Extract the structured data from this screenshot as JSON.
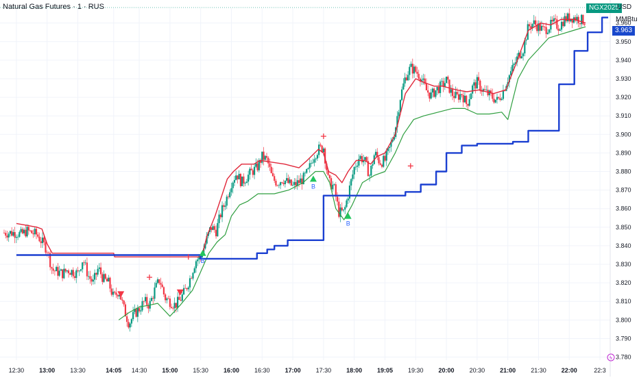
{
  "header": {
    "title": "Natural Gas Futures · 1 · RUS",
    "currency": "USD",
    "unit": "MMBtu",
    "ticker_badge": "NGX2025",
    "last_price_badge": "3.963"
  },
  "colors": {
    "bull": "#089981",
    "bear": "#f23645",
    "red_line": "#e0273a",
    "green_line": "#2e9e3f",
    "blue_line": "#1a3fd1",
    "signal_up": "#22c55e",
    "signal_down": "#f23645",
    "signal_text": "#2962ff"
  },
  "chart_data": {
    "type": "candlestick",
    "ylim": [
      3.785,
      3.968
    ],
    "y_ticks": [
      3.78,
      3.79,
      3.8,
      3.81,
      3.82,
      3.83,
      3.84,
      3.85,
      3.86,
      3.87,
      3.88,
      3.89,
      3.9,
      3.91,
      3.92,
      3.93,
      3.94,
      3.95,
      3.96
    ],
    "y_tick_labels": [
      "3.780",
      "3.790",
      "3.800",
      "3.810",
      "3.820",
      "3.830",
      "3.840",
      "3.850",
      "3.860",
      "3.870",
      "3.880",
      "3.890",
      "3.900",
      "3.910",
      "3.920",
      "3.930",
      "3.940",
      "3.950",
      "3.960"
    ],
    "x_ticks": [
      {
        "t": 0,
        "label": "12:30",
        "bold": false
      },
      {
        "t": 30,
        "label": "13:00",
        "bold": true
      },
      {
        "t": 60,
        "label": "13:30",
        "bold": false
      },
      {
        "t": 95,
        "label": "14:05",
        "bold": true
      },
      {
        "t": 120,
        "label": "14:30",
        "bold": false
      },
      {
        "t": 150,
        "label": "15:00",
        "bold": true
      },
      {
        "t": 180,
        "label": "15:30",
        "bold": false
      },
      {
        "t": 210,
        "label": "16:00",
        "bold": true
      },
      {
        "t": 240,
        "label": "16:30",
        "bold": false
      },
      {
        "t": 270,
        "label": "17:00",
        "bold": true
      },
      {
        "t": 300,
        "label": "17:30",
        "bold": false
      },
      {
        "t": 330,
        "label": "18:00",
        "bold": true
      },
      {
        "t": 360,
        "label": "19:05",
        "bold": true
      },
      {
        "t": 390,
        "label": "19:30",
        "bold": false
      },
      {
        "t": 420,
        "label": "20:00",
        "bold": true
      },
      {
        "t": 450,
        "label": "20:30",
        "bold": false
      },
      {
        "t": 480,
        "label": "21:00",
        "bold": true
      },
      {
        "t": 510,
        "label": "21:30",
        "bold": false
      },
      {
        "t": 540,
        "label": "22:00",
        "bold": true
      },
      {
        "t": 570,
        "label": "22:3",
        "bold": false
      }
    ],
    "anchors": [
      [
        0,
        3.847
      ],
      [
        5,
        3.846
      ],
      [
        10,
        3.848
      ],
      [
        15,
        3.847
      ],
      [
        20,
        3.846
      ],
      [
        25,
        3.842
      ],
      [
        30,
        3.838
      ],
      [
        35,
        3.827
      ],
      [
        40,
        3.826
      ],
      [
        45,
        3.825
      ],
      [
        50,
        3.827
      ],
      [
        55,
        3.826
      ],
      [
        60,
        3.825
      ],
      [
        65,
        3.833
      ],
      [
        70,
        3.824
      ],
      [
        75,
        3.82
      ],
      [
        80,
        3.828
      ],
      [
        85,
        3.822
      ],
      [
        90,
        3.82
      ],
      [
        95,
        3.812
      ],
      [
        100,
        3.816
      ],
      [
        105,
        3.806
      ],
      [
        110,
        3.798
      ],
      [
        115,
        3.803
      ],
      [
        120,
        3.806
      ],
      [
        125,
        3.81
      ],
      [
        130,
        3.808
      ],
      [
        135,
        3.816
      ],
      [
        140,
        3.822
      ],
      [
        145,
        3.812
      ],
      [
        150,
        3.81
      ],
      [
        155,
        3.808
      ],
      [
        160,
        3.811
      ],
      [
        165,
        3.816
      ],
      [
        170,
        3.823
      ],
      [
        175,
        3.832
      ],
      [
        180,
        3.834
      ],
      [
        185,
        3.842
      ],
      [
        190,
        3.85
      ],
      [
        195,
        3.848
      ],
      [
        200,
        3.858
      ],
      [
        205,
        3.865
      ],
      [
        210,
        3.874
      ],
      [
        215,
        3.879
      ],
      [
        220,
        3.874
      ],
      [
        225,
        3.877
      ],
      [
        230,
        3.88
      ],
      [
        235,
        3.882
      ],
      [
        240,
        3.888
      ],
      [
        245,
        3.886
      ],
      [
        250,
        3.876
      ],
      [
        255,
        3.874
      ],
      [
        260,
        3.876
      ],
      [
        265,
        3.874
      ],
      [
        270,
        3.872
      ],
      [
        275,
        3.874
      ],
      [
        280,
        3.876
      ],
      [
        285,
        3.88
      ],
      [
        290,
        3.888
      ],
      [
        295,
        3.892
      ],
      [
        300,
        3.893
      ],
      [
        305,
        3.874
      ],
      [
        310,
        3.872
      ],
      [
        315,
        3.858
      ],
      [
        320,
        3.858
      ],
      [
        325,
        3.87
      ],
      [
        330,
        3.882
      ],
      [
        335,
        3.888
      ],
      [
        340,
        3.886
      ],
      [
        345,
        3.878
      ],
      [
        350,
        3.89
      ],
      [
        355,
        3.885
      ],
      [
        360,
        3.886
      ],
      [
        365,
        3.893
      ],
      [
        370,
        3.903
      ],
      [
        375,
        3.92
      ],
      [
        380,
        3.931
      ],
      [
        385,
        3.936
      ],
      [
        390,
        3.934
      ],
      [
        395,
        3.931
      ],
      [
        400,
        3.924
      ],
      [
        405,
        3.921
      ],
      [
        410,
        3.924
      ],
      [
        415,
        3.926
      ],
      [
        420,
        3.929
      ],
      [
        425,
        3.922
      ],
      [
        430,
        3.92
      ],
      [
        435,
        3.922
      ],
      [
        440,
        3.916
      ],
      [
        445,
        3.925
      ],
      [
        450,
        3.928
      ],
      [
        455,
        3.924
      ],
      [
        460,
        3.922
      ],
      [
        465,
        3.92
      ],
      [
        470,
        3.918
      ],
      [
        475,
        3.923
      ],
      [
        480,
        3.93
      ],
      [
        485,
        3.936
      ],
      [
        490,
        3.942
      ],
      [
        495,
        3.946
      ],
      [
        500,
        3.958
      ],
      [
        505,
        3.96
      ],
      [
        510,
        3.958
      ],
      [
        515,
        3.956
      ],
      [
        520,
        3.958
      ],
      [
        525,
        3.96
      ],
      [
        530,
        3.958
      ],
      [
        535,
        3.962
      ],
      [
        540,
        3.963
      ],
      [
        545,
        3.963
      ],
      [
        550,
        3.962
      ],
      [
        555,
        3.961
      ]
    ],
    "red_line": [
      [
        0,
        3.852
      ],
      [
        10,
        3.851
      ],
      [
        20,
        3.85
      ],
      [
        25,
        3.849
      ],
      [
        30,
        3.841
      ],
      [
        35,
        3.836
      ],
      [
        40,
        3.836
      ],
      [
        95,
        3.836
      ],
      [
        96,
        3.834
      ],
      [
        160,
        3.834
      ],
      [
        175,
        3.834
      ],
      [
        180,
        3.834
      ],
      [
        182,
        3.836
      ],
      [
        186,
        3.845
      ],
      [
        194,
        3.856
      ],
      [
        200,
        3.866
      ],
      [
        206,
        3.876
      ],
      [
        212,
        3.88
      ],
      [
        220,
        3.884
      ],
      [
        232,
        3.884
      ],
      [
        238,
        3.886
      ],
      [
        262,
        3.884
      ],
      [
        276,
        3.882
      ],
      [
        284,
        3.886
      ],
      [
        295,
        3.892
      ],
      [
        300,
        3.89
      ],
      [
        305,
        3.88
      ],
      [
        312,
        3.878
      ],
      [
        318,
        3.874
      ],
      [
        324,
        3.88
      ],
      [
        332,
        3.886
      ],
      [
        340,
        3.886
      ],
      [
        346,
        3.884
      ],
      [
        352,
        3.888
      ],
      [
        360,
        3.89
      ],
      [
        370,
        3.9
      ],
      [
        380,
        3.922
      ],
      [
        390,
        3.93
      ],
      [
        398,
        3.928
      ],
      [
        408,
        3.926
      ],
      [
        416,
        3.926
      ],
      [
        430,
        3.924
      ],
      [
        440,
        3.923
      ],
      [
        452,
        3.924
      ],
      [
        466,
        3.922
      ],
      [
        478,
        3.924
      ],
      [
        488,
        3.938
      ],
      [
        500,
        3.956
      ],
      [
        512,
        3.96
      ],
      [
        522,
        3.959
      ],
      [
        532,
        3.962
      ],
      [
        545,
        3.962
      ],
      [
        556,
        3.96
      ]
    ],
    "green_line": [
      [
        100,
        3.8
      ],
      [
        110,
        3.804
      ],
      [
        120,
        3.807
      ],
      [
        130,
        3.808
      ],
      [
        138,
        3.809
      ],
      [
        150,
        3.802
      ],
      [
        160,
        3.808
      ],
      [
        172,
        3.816
      ],
      [
        180,
        3.826
      ],
      [
        188,
        3.836
      ],
      [
        196,
        3.842
      ],
      [
        204,
        3.846
      ],
      [
        210,
        3.856
      ],
      [
        218,
        3.862
      ],
      [
        226,
        3.864
      ],
      [
        236,
        3.868
      ],
      [
        252,
        3.868
      ],
      [
        266,
        3.87
      ],
      [
        280,
        3.874
      ],
      [
        292,
        3.88
      ],
      [
        300,
        3.88
      ],
      [
        306,
        3.874
      ],
      [
        312,
        3.86
      ],
      [
        320,
        3.854
      ],
      [
        328,
        3.862
      ],
      [
        338,
        3.874
      ],
      [
        350,
        3.878
      ],
      [
        360,
        3.88
      ],
      [
        370,
        3.89
      ],
      [
        378,
        3.9
      ],
      [
        388,
        3.908
      ],
      [
        398,
        3.91
      ],
      [
        412,
        3.912
      ],
      [
        426,
        3.914
      ],
      [
        438,
        3.914
      ],
      [
        450,
        3.911
      ],
      [
        462,
        3.911
      ],
      [
        474,
        3.912
      ],
      [
        480,
        3.908
      ],
      [
        490,
        3.93
      ],
      [
        500,
        3.94
      ],
      [
        510,
        3.946
      ],
      [
        520,
        3.952
      ],
      [
        532,
        3.954
      ],
      [
        544,
        3.956
      ],
      [
        556,
        3.958
      ]
    ],
    "blue_line": [
      [
        0,
        3.835
      ],
      [
        180,
        3.835
      ],
      [
        180,
        3.833
      ],
      [
        235,
        3.833
      ],
      [
        235,
        3.836
      ],
      [
        245,
        3.836
      ],
      [
        245,
        3.838
      ],
      [
        252,
        3.838
      ],
      [
        252,
        3.84
      ],
      [
        265,
        3.84
      ],
      [
        265,
        3.843
      ],
      [
        300,
        3.843
      ],
      [
        300,
        3.867
      ],
      [
        380,
        3.867
      ],
      [
        380,
        3.869
      ],
      [
        395,
        3.869
      ],
      [
        395,
        3.873
      ],
      [
        410,
        3.873
      ],
      [
        410,
        3.88
      ],
      [
        420,
        3.88
      ],
      [
        420,
        3.89
      ],
      [
        435,
        3.89
      ],
      [
        435,
        3.894
      ],
      [
        450,
        3.894
      ],
      [
        450,
        3.895
      ],
      [
        485,
        3.895
      ],
      [
        485,
        3.896
      ],
      [
        500,
        3.896
      ],
      [
        500,
        3.902
      ],
      [
        530,
        3.902
      ],
      [
        530,
        3.927
      ],
      [
        545,
        3.927
      ],
      [
        545,
        3.945
      ],
      [
        558,
        3.945
      ],
      [
        558,
        3.955
      ],
      [
        572,
        3.955
      ],
      [
        572,
        3.963
      ],
      [
        578,
        3.963
      ]
    ],
    "signals": [
      {
        "t": 290,
        "v": 3.876,
        "kind": "buy",
        "label": "B"
      },
      {
        "t": 324,
        "v": 3.856,
        "kind": "buy",
        "label": "B"
      },
      {
        "t": 182,
        "v": 3.836,
        "kind": "buy",
        "label": "B"
      },
      {
        "t": 102,
        "v": 3.814,
        "kind": "sell",
        "label": ""
      },
      {
        "t": 160,
        "v": 3.815,
        "kind": "sell",
        "label": ""
      }
    ],
    "crosses": [
      {
        "t": 130,
        "v": 3.823
      },
      {
        "t": 168,
        "v": 3.834
      },
      {
        "t": 300,
        "v": 3.899
      },
      {
        "t": 385,
        "v": 3.883
      }
    ]
  }
}
